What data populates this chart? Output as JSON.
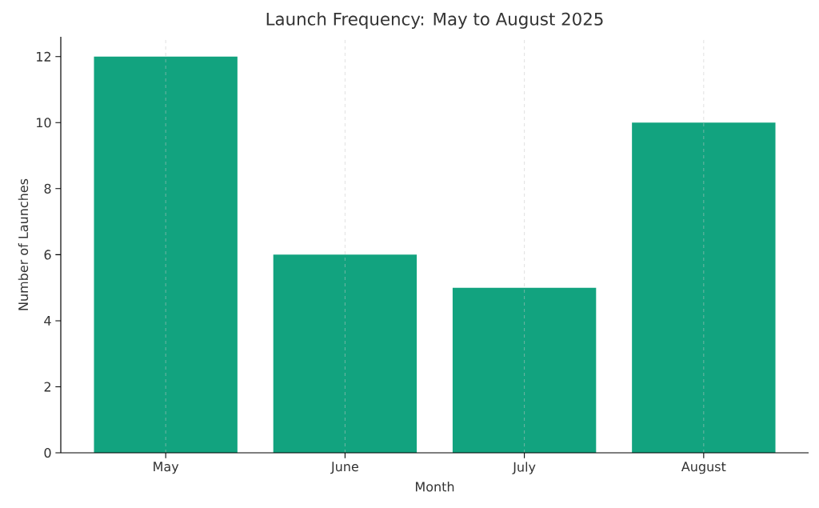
{
  "chart_data": {
    "type": "bar",
    "title": "Launch Frequency: May to August 2025",
    "xlabel": "Month",
    "ylabel": "Number of Launches",
    "categories": [
      "May",
      "June",
      "July",
      "August"
    ],
    "values": [
      12,
      6,
      5,
      10
    ],
    "color": "#12a37f",
    "ylim": [
      0,
      12.6
    ],
    "yticks": [
      0,
      2,
      4,
      6,
      8,
      10,
      12
    ],
    "grid": "x"
  }
}
